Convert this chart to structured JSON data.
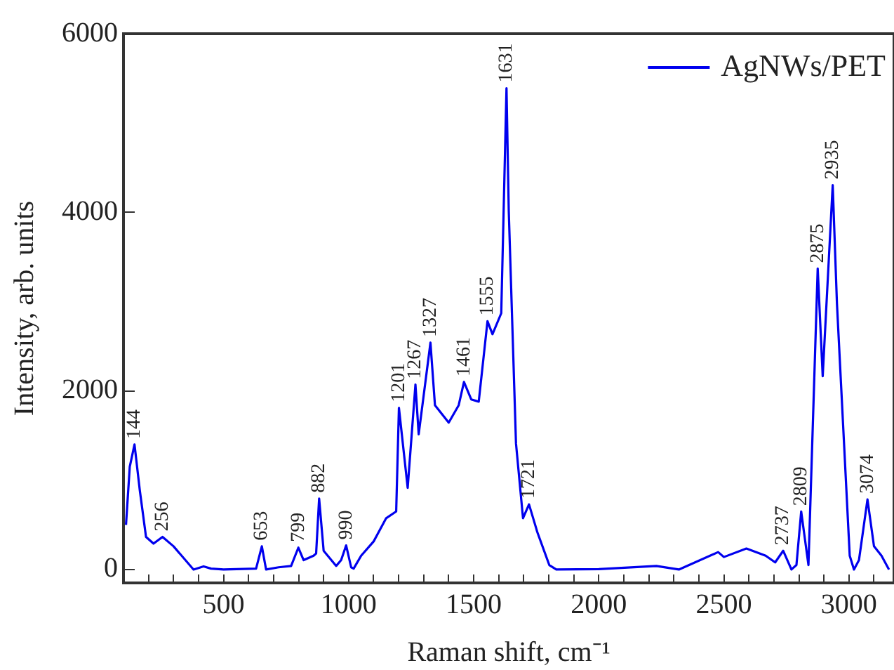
{
  "chart_data": {
    "type": "line",
    "xlabel": "Raman shift, cm⁻¹",
    "ylabel": "Intensity, arb. units",
    "xlim": [
      100,
      3180
    ],
    "ylim": [
      -150,
      6000
    ],
    "xticks": [
      {
        "value": 200,
        "label": null
      },
      {
        "value": 300,
        "label": null
      },
      {
        "value": 400,
        "label": null
      },
      500,
      {
        "value": 600,
        "label": null
      },
      {
        "value": 700,
        "label": null
      },
      {
        "value": 800,
        "label": null
      },
      {
        "value": 900,
        "label": null
      },
      1000,
      {
        "value": 1100,
        "label": null
      },
      {
        "value": 1200,
        "label": null
      },
      {
        "value": 1300,
        "label": null
      },
      {
        "value": 1400,
        "label": null
      },
      1500,
      {
        "value": 1600,
        "label": null
      },
      {
        "value": 1700,
        "label": null
      },
      {
        "value": 1800,
        "label": null
      },
      {
        "value": 1900,
        "label": null
      },
      2000,
      {
        "value": 2100,
        "label": null
      },
      {
        "value": 2200,
        "label": null
      },
      {
        "value": 2300,
        "label": null
      },
      {
        "value": 2400,
        "label": null
      },
      2500,
      {
        "value": 2600,
        "label": null
      },
      {
        "value": 2700,
        "label": null
      },
      {
        "value": 2800,
        "label": null
      },
      {
        "value": 2900,
        "label": null
      },
      3000,
      {
        "value": 3100,
        "label": null
      }
    ],
    "yticks": [
      0,
      2000,
      4000,
      6000
    ],
    "grid": false,
    "legend": "top right",
    "marker": "none",
    "line_style": "solid",
    "series": [
      {
        "name": "AgNWs/PET",
        "color": "#0000ee",
        "x": [
          110,
          125,
          144,
          165,
          190,
          220,
          256,
          300,
          380,
          420,
          450,
          500,
          630,
          653,
          670,
          720,
          770,
          799,
          820,
          860,
          870,
          882,
          900,
          950,
          970,
          990,
          1010,
          1020,
          1050,
          1100,
          1150,
          1190,
          1201,
          1236,
          1267,
          1280,
          1327,
          1345,
          1400,
          1440,
          1461,
          1490,
          1520,
          1555,
          1575,
          1610,
          1631,
          1640,
          1669,
          1697,
          1721,
          1754,
          1802,
          1830,
          2000,
          2230,
          2320,
          2477,
          2500,
          2590,
          2667,
          2705,
          2737,
          2770,
          2790,
          2809,
          2838,
          2875,
          2895,
          2935,
          2952,
          3003,
          3020,
          3040,
          3074,
          3100,
          3130,
          3160
        ],
        "values": [
          500,
          1150,
          1400,
          890,
          365,
          290,
          365,
          260,
          0,
          35,
          10,
          0,
          10,
          260,
          0,
          25,
          40,
          245,
          105,
          155,
          180,
          795,
          210,
          40,
          105,
          270,
          25,
          10,
          155,
          315,
          575,
          650,
          1810,
          915,
          2070,
          1515,
          2540,
          1840,
          1645,
          1840,
          2100,
          1905,
          1880,
          2780,
          2635,
          2870,
          5390,
          4020,
          1410,
          575,
          730,
          420,
          50,
          0,
          5,
          40,
          0,
          195,
          140,
          235,
          155,
          80,
          210,
          0,
          50,
          650,
          50,
          3370,
          2165,
          4305,
          2975,
          155,
          0,
          105,
          785,
          260,
          155,
          0
        ]
      }
    ],
    "annotations": [
      {
        "text": "144",
        "x": 144,
        "y": 1400
      },
      {
        "text": "256",
        "x": 256,
        "y": 365
      },
      {
        "text": "653",
        "x": 653,
        "y": 260
      },
      {
        "text": "799",
        "x": 799,
        "y": 245
      },
      {
        "text": "882",
        "x": 882,
        "y": 795
      },
      {
        "text": "990",
        "x": 990,
        "y": 270
      },
      {
        "text": "1201",
        "x": 1201,
        "y": 1810
      },
      {
        "text": "1267",
        "x": 1267,
        "y": 2070
      },
      {
        "text": "1327",
        "x": 1327,
        "y": 2540
      },
      {
        "text": "1461",
        "x": 1461,
        "y": 2100
      },
      {
        "text": "1555",
        "x": 1555,
        "y": 2780
      },
      {
        "text": "1631",
        "x": 1631,
        "y": 5390
      },
      {
        "text": "1721",
        "x": 1721,
        "y": 730
      },
      {
        "text": "2737",
        "x": 2737,
        "y": 210
      },
      {
        "text": "2809",
        "x": 2809,
        "y": 650
      },
      {
        "text": "2875",
        "x": 2875,
        "y": 3370
      },
      {
        "text": "2935",
        "x": 2935,
        "y": 4305
      },
      {
        "text": "3074",
        "x": 3074,
        "y": 785
      }
    ]
  }
}
